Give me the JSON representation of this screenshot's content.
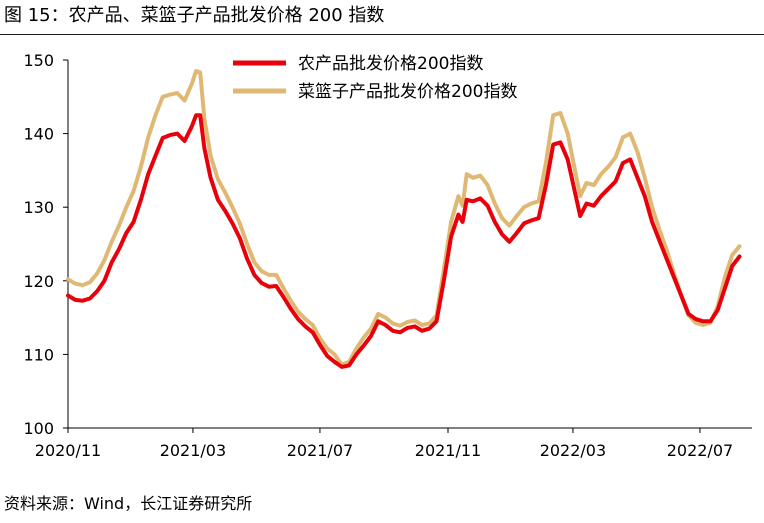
{
  "figure": {
    "title": "图 15：农产品、菜篮子产品批发价格 200 指数",
    "source": "资料来源：Wind，长江证券研究所"
  },
  "chart_data": {
    "type": "line",
    "x_tick_labels": [
      "2020/11",
      "2021/03",
      "2021/07",
      "2021/11",
      "2022/03",
      "2022/07"
    ],
    "ylim": [
      100,
      150
    ],
    "yticks": [
      100,
      110,
      120,
      130,
      140,
      150
    ],
    "legend_position": "top-center",
    "grid": false,
    "series": [
      {
        "name": "农产品批发价格200指数",
        "color": "#e8000b",
        "points": [
          [
            "2020-11-01",
            118.0
          ],
          [
            "2020-11-08",
            117.4
          ],
          [
            "2020-11-15",
            117.3
          ],
          [
            "2020-11-22",
            117.6
          ],
          [
            "2020-11-29",
            118.6
          ],
          [
            "2020-12-06",
            120.0
          ],
          [
            "2020-12-13",
            122.5
          ],
          [
            "2020-12-20",
            124.3
          ],
          [
            "2020-12-27",
            126.5
          ],
          [
            "2021-01-03",
            128.0
          ],
          [
            "2021-01-10",
            131.0
          ],
          [
            "2021-01-17",
            134.5
          ],
          [
            "2021-01-24",
            137.0
          ],
          [
            "2021-01-31",
            139.4
          ],
          [
            "2021-02-07",
            139.8
          ],
          [
            "2021-02-14",
            140.0
          ],
          [
            "2021-02-21",
            139.0
          ],
          [
            "2021-02-28",
            141.0
          ],
          [
            "2021-03-04",
            142.5
          ],
          [
            "2021-03-08",
            142.5
          ],
          [
            "2021-03-12",
            138.0
          ],
          [
            "2021-03-18",
            134.0
          ],
          [
            "2021-03-25",
            131.0
          ],
          [
            "2021-04-01",
            129.5
          ],
          [
            "2021-04-08",
            127.8
          ],
          [
            "2021-04-15",
            125.8
          ],
          [
            "2021-04-22",
            123.0
          ],
          [
            "2021-04-29",
            120.8
          ],
          [
            "2021-05-06",
            119.7
          ],
          [
            "2021-05-13",
            119.2
          ],
          [
            "2021-05-20",
            119.3
          ],
          [
            "2021-05-27",
            117.8
          ],
          [
            "2021-06-03",
            116.2
          ],
          [
            "2021-06-10",
            114.8
          ],
          [
            "2021-06-17",
            113.8
          ],
          [
            "2021-06-24",
            113.0
          ],
          [
            "2021-07-01",
            111.3
          ],
          [
            "2021-07-08",
            109.8
          ],
          [
            "2021-07-15",
            109.0
          ],
          [
            "2021-07-22",
            108.3
          ],
          [
            "2021-07-29",
            108.5
          ],
          [
            "2021-08-05",
            110.0
          ],
          [
            "2021-08-12",
            111.2
          ],
          [
            "2021-08-19",
            112.5
          ],
          [
            "2021-08-26",
            114.5
          ],
          [
            "2021-09-02",
            114.0
          ],
          [
            "2021-09-09",
            113.2
          ],
          [
            "2021-09-16",
            113.0
          ],
          [
            "2021-09-23",
            113.6
          ],
          [
            "2021-09-30",
            113.8
          ],
          [
            "2021-10-07",
            113.2
          ],
          [
            "2021-10-14",
            113.5
          ],
          [
            "2021-10-21",
            114.5
          ],
          [
            "2021-10-28",
            120.0
          ],
          [
            "2021-11-04",
            126.0
          ],
          [
            "2021-11-11",
            129.0
          ],
          [
            "2021-11-15",
            128.0
          ],
          [
            "2021-11-19",
            131.0
          ],
          [
            "2021-11-25",
            130.8
          ],
          [
            "2021-12-02",
            131.2
          ],
          [
            "2021-12-09",
            130.2
          ],
          [
            "2021-12-16",
            128.0
          ],
          [
            "2021-12-23",
            126.3
          ],
          [
            "2021-12-30",
            125.3
          ],
          [
            "2022-01-06",
            126.5
          ],
          [
            "2022-01-13",
            127.8
          ],
          [
            "2022-01-20",
            128.2
          ],
          [
            "2022-01-27",
            128.5
          ],
          [
            "2022-02-03",
            133.0
          ],
          [
            "2022-02-10",
            138.5
          ],
          [
            "2022-02-17",
            138.8
          ],
          [
            "2022-02-24",
            136.5
          ],
          [
            "2022-03-03",
            132.0
          ],
          [
            "2022-03-08",
            128.8
          ],
          [
            "2022-03-14",
            130.5
          ],
          [
            "2022-03-21",
            130.2
          ],
          [
            "2022-03-28",
            131.5
          ],
          [
            "2022-04-04",
            132.5
          ],
          [
            "2022-04-11",
            133.5
          ],
          [
            "2022-04-18",
            136.0
          ],
          [
            "2022-04-25",
            136.5
          ],
          [
            "2022-05-02",
            134.0
          ],
          [
            "2022-05-09",
            131.5
          ],
          [
            "2022-05-16",
            128.0
          ],
          [
            "2022-05-23",
            125.5
          ],
          [
            "2022-05-30",
            123.0
          ],
          [
            "2022-06-06",
            120.5
          ],
          [
            "2022-06-13",
            118.0
          ],
          [
            "2022-06-20",
            115.5
          ],
          [
            "2022-06-27",
            114.8
          ],
          [
            "2022-07-04",
            114.5
          ],
          [
            "2022-07-11",
            114.5
          ],
          [
            "2022-07-18",
            116.0
          ],
          [
            "2022-07-25",
            119.0
          ],
          [
            "2022-08-01",
            122.0
          ],
          [
            "2022-08-08",
            123.3
          ]
        ]
      },
      {
        "name": "菜篮子产品批发价格200指数",
        "color": "#dfb874",
        "points": [
          [
            "2020-11-01",
            120.2
          ],
          [
            "2020-11-08",
            119.6
          ],
          [
            "2020-11-15",
            119.4
          ],
          [
            "2020-11-22",
            119.8
          ],
          [
            "2020-11-29",
            121.0
          ],
          [
            "2020-12-06",
            122.8
          ],
          [
            "2020-12-13",
            125.3
          ],
          [
            "2020-12-20",
            127.5
          ],
          [
            "2020-12-27",
            130.0
          ],
          [
            "2021-01-03",
            132.2
          ],
          [
            "2021-01-10",
            135.5
          ],
          [
            "2021-01-17",
            139.5
          ],
          [
            "2021-01-24",
            142.5
          ],
          [
            "2021-01-31",
            145.0
          ],
          [
            "2021-02-07",
            145.3
          ],
          [
            "2021-02-14",
            145.5
          ],
          [
            "2021-02-21",
            144.5
          ],
          [
            "2021-02-28",
            146.8
          ],
          [
            "2021-03-04",
            148.5
          ],
          [
            "2021-03-08",
            148.3
          ],
          [
            "2021-03-12",
            142.0
          ],
          [
            "2021-03-18",
            137.0
          ],
          [
            "2021-03-25",
            133.8
          ],
          [
            "2021-04-01",
            132.0
          ],
          [
            "2021-04-08",
            130.0
          ],
          [
            "2021-04-15",
            127.8
          ],
          [
            "2021-04-22",
            125.0
          ],
          [
            "2021-04-29",
            122.5
          ],
          [
            "2021-05-06",
            121.3
          ],
          [
            "2021-05-13",
            120.8
          ],
          [
            "2021-05-20",
            120.8
          ],
          [
            "2021-05-27",
            119.0
          ],
          [
            "2021-06-03",
            117.3
          ],
          [
            "2021-06-10",
            115.8
          ],
          [
            "2021-06-17",
            114.8
          ],
          [
            "2021-06-24",
            114.0
          ],
          [
            "2021-07-01",
            112.2
          ],
          [
            "2021-07-08",
            110.8
          ],
          [
            "2021-07-15",
            110.0
          ],
          [
            "2021-07-22",
            108.6
          ],
          [
            "2021-07-29",
            109.0
          ],
          [
            "2021-08-05",
            110.8
          ],
          [
            "2021-08-12",
            112.3
          ],
          [
            "2021-08-19",
            113.5
          ],
          [
            "2021-08-26",
            115.5
          ],
          [
            "2021-09-02",
            115.0
          ],
          [
            "2021-09-09",
            114.2
          ],
          [
            "2021-09-16",
            113.9
          ],
          [
            "2021-09-23",
            114.4
          ],
          [
            "2021-09-30",
            114.6
          ],
          [
            "2021-10-07",
            114.0
          ],
          [
            "2021-10-14",
            114.2
          ],
          [
            "2021-10-21",
            115.3
          ],
          [
            "2021-10-28",
            121.5
          ],
          [
            "2021-11-04",
            128.0
          ],
          [
            "2021-11-11",
            131.5
          ],
          [
            "2021-11-15",
            130.2
          ],
          [
            "2021-11-19",
            134.5
          ],
          [
            "2021-11-25",
            134.0
          ],
          [
            "2021-12-02",
            134.3
          ],
          [
            "2021-12-09",
            133.0
          ],
          [
            "2021-12-16",
            130.5
          ],
          [
            "2021-12-23",
            128.5
          ],
          [
            "2021-12-30",
            127.5
          ],
          [
            "2022-01-06",
            128.8
          ],
          [
            "2022-01-13",
            130.0
          ],
          [
            "2022-01-20",
            130.5
          ],
          [
            "2022-01-27",
            130.8
          ],
          [
            "2022-02-03",
            136.0
          ],
          [
            "2022-02-10",
            142.5
          ],
          [
            "2022-02-17",
            142.8
          ],
          [
            "2022-02-24",
            140.0
          ],
          [
            "2022-03-03",
            135.0
          ],
          [
            "2022-03-08",
            131.5
          ],
          [
            "2022-03-14",
            133.3
          ],
          [
            "2022-03-21",
            133.0
          ],
          [
            "2022-03-28",
            134.5
          ],
          [
            "2022-04-04",
            135.5
          ],
          [
            "2022-04-11",
            136.8
          ],
          [
            "2022-04-18",
            139.5
          ],
          [
            "2022-04-25",
            140.0
          ],
          [
            "2022-05-02",
            137.5
          ],
          [
            "2022-05-09",
            134.0
          ],
          [
            "2022-05-16",
            130.0
          ],
          [
            "2022-05-23",
            127.0
          ],
          [
            "2022-05-30",
            124.2
          ],
          [
            "2022-06-06",
            121.0
          ],
          [
            "2022-06-13",
            118.0
          ],
          [
            "2022-06-20",
            115.3
          ],
          [
            "2022-06-27",
            114.3
          ],
          [
            "2022-07-04",
            114.0
          ],
          [
            "2022-07-11",
            114.3
          ],
          [
            "2022-07-18",
            116.5
          ],
          [
            "2022-07-25",
            120.5
          ],
          [
            "2022-08-01",
            123.5
          ],
          [
            "2022-08-08",
            124.7
          ]
        ]
      }
    ]
  }
}
